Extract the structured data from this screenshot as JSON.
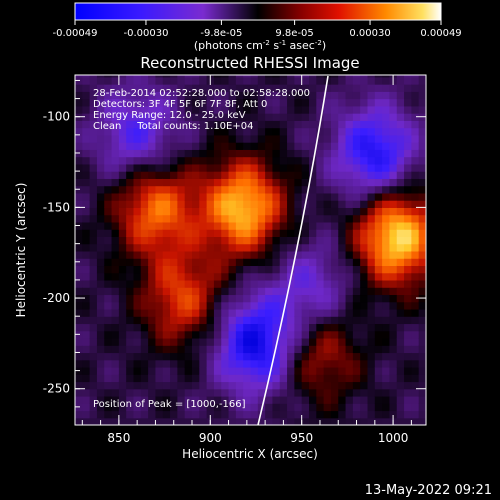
{
  "chart_data": {
    "type": "heatmap",
    "title": "Reconstructed RHESSI Image",
    "xlabel": "Heliocentric X (arcsec)",
    "ylabel": "Heliocentric Y (arcsec)",
    "xlim": [
      826,
      1018
    ],
    "ylim": [
      -270,
      -77
    ],
    "x_ticks": [
      850,
      900,
      950,
      1000
    ],
    "y_ticks": [
      -100,
      -150,
      -200,
      -250
    ],
    "colorbar": {
      "units": "(photons cm-2 s-1 asec-2)",
      "tick_labels": [
        "-0.00049",
        "-0.00030",
        "-9.8e-05",
        "9.8e-05",
        "0.00030",
        "0.00049"
      ],
      "range": [
        -0.00049,
        0.00049
      ]
    },
    "info_lines": [
      "28-Feb-2014 02:52:28.000 to 02:58:28.000",
      "Detectors: 3F 4F 5F 6F 7F 8F, Att 0",
      "Energy Range: 12.0 - 25.0 keV",
      "Clean     Total counts: 1.10E+04"
    ],
    "peak_text": "Position of Peak = [1000,-166]",
    "peak": [
      1000,
      -166
    ],
    "limb": "white solar limb arc",
    "hot_spots": [
      {
        "x": 918,
        "y": -150,
        "value": 0.00045
      },
      {
        "x": 1002,
        "y": -166,
        "value": 0.00049
      },
      {
        "x": 870,
        "y": -150,
        "value": 0.00035
      },
      {
        "x": 885,
        "y": -200,
        "value": 0.00028
      },
      {
        "x": 960,
        "y": -230,
        "value": 0.00022
      }
    ],
    "cold_spots": [
      {
        "x": 925,
        "y": -225,
        "value": -0.0004
      },
      {
        "x": 860,
        "y": -110,
        "value": -0.00025
      },
      {
        "x": 990,
        "y": -120,
        "value": -0.00035
      },
      {
        "x": 955,
        "y": -195,
        "value": -0.0002
      }
    ]
  },
  "footer": {
    "date": "13-May-2022 09:21"
  }
}
